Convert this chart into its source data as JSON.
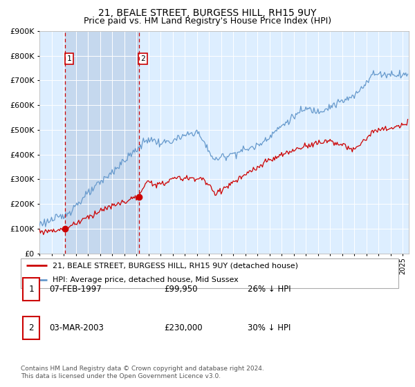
{
  "title": "21, BEALE STREET, BURGESS HILL, RH15 9UY",
  "subtitle": "Price paid vs. HM Land Registry's House Price Index (HPI)",
  "ylim": [
    0,
    900000
  ],
  "xlim_start": 1995.0,
  "xlim_end": 2025.5,
  "hpi_color": "#6699cc",
  "price_color": "#cc0000",
  "bg_color": "#ddeeff",
  "shade_color": "#c5d8ee",
  "transaction1_x": 1997.1,
  "transaction1_y": 99950,
  "transaction2_x": 2003.2,
  "transaction2_y": 230000,
  "legend_line1": "21, BEALE STREET, BURGESS HILL, RH15 9UY (detached house)",
  "legend_line2": "HPI: Average price, detached house, Mid Sussex",
  "footer": "Contains HM Land Registry data © Crown copyright and database right 2024.\nThis data is licensed under the Open Government Licence v3.0.",
  "table_rows": [
    {
      "num": "1",
      "date": "07-FEB-1997",
      "price": "£99,950",
      "pct": "26% ↓ HPI"
    },
    {
      "num": "2",
      "date": "03-MAR-2003",
      "price": "£230,000",
      "pct": "30% ↓ HPI"
    }
  ],
  "title_fontsize": 10,
  "subtitle_fontsize": 9
}
